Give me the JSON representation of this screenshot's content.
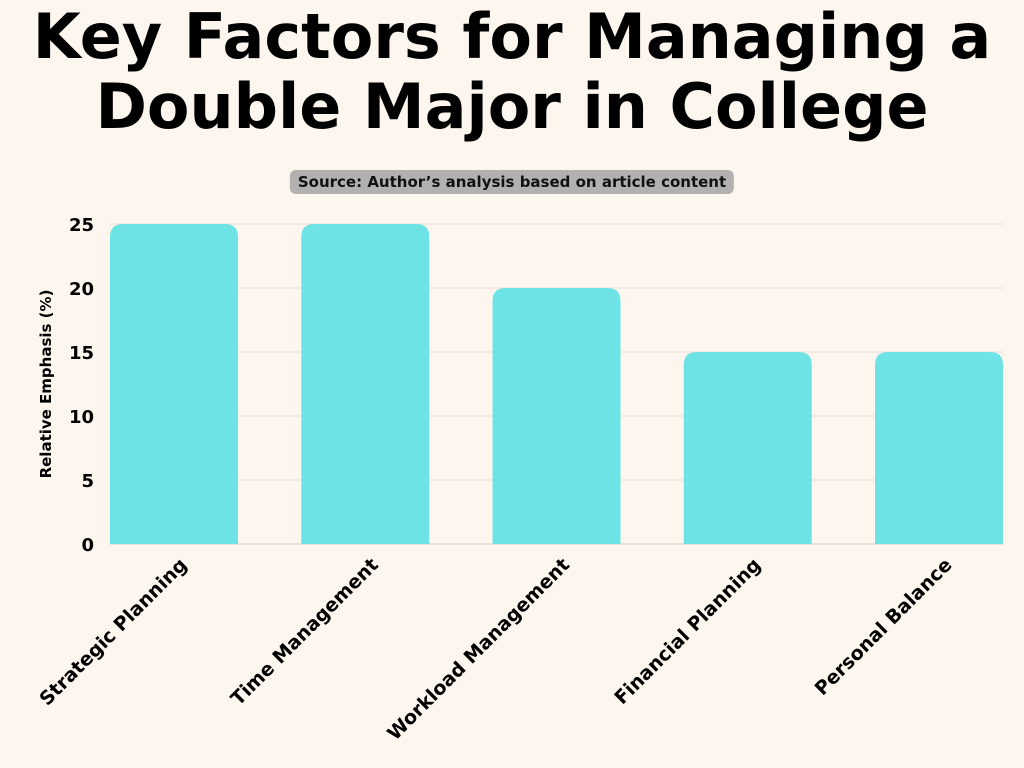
{
  "chart_data": {
    "type": "bar",
    "title": "Key Factors for Managing a Double Major in College",
    "subtitle": "Source: Author’s analysis based on article content",
    "xlabel": "",
    "ylabel": "Relative Emphasis (%)",
    "categories": [
      "Strategic Planning",
      "Time Management",
      "Workload Management",
      "Financial Planning",
      "Personal Balance"
    ],
    "values": [
      25,
      25,
      20,
      15,
      15
    ],
    "ylim": [
      0,
      25
    ],
    "yticks": [
      0,
      5,
      10,
      15,
      20,
      25
    ],
    "grid": true,
    "bar_color": "#6ee3e6",
    "background_color": "#fdf6ef"
  }
}
